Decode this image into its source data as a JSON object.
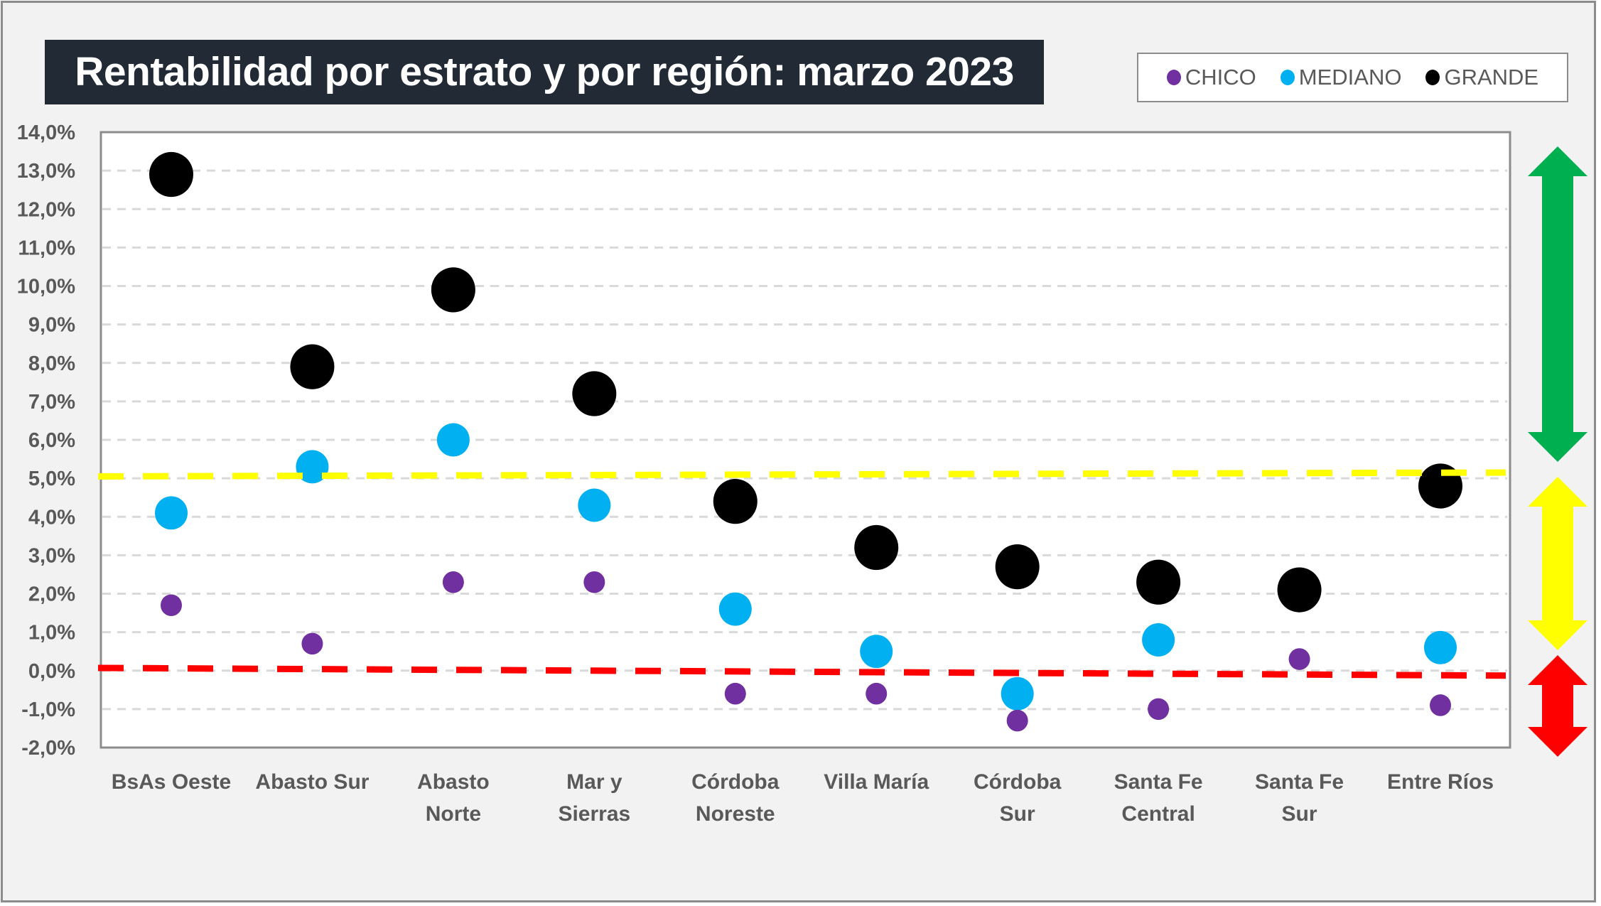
{
  "chart_data": {
    "type": "scatter",
    "title": "Rentabilidad por estrato y por región: marzo 2023",
    "xlabel": "",
    "ylabel": "",
    "ylim": [
      -2.0,
      14.0
    ],
    "ytick_step": 1.0,
    "ytick_format": "{v},0%",
    "grid": true,
    "legend_position": "top-right",
    "categories": [
      [
        "BsAs Oeste"
      ],
      [
        "Abasto Sur"
      ],
      [
        "Abasto",
        "Norte"
      ],
      [
        "Mar y",
        "Sierras"
      ],
      [
        "Córdoba",
        "Noreste"
      ],
      [
        "Villa María"
      ],
      [
        "Córdoba",
        "Sur"
      ],
      [
        "Santa Fe",
        "Central"
      ],
      [
        "Santa Fe",
        "Sur"
      ],
      [
        "Entre Ríos"
      ]
    ],
    "series": [
      {
        "name": "MEDIANO",
        "color": "#00b0f0",
        "size": "medium",
        "values": [
          4.1,
          5.3,
          6.0,
          4.3,
          1.6,
          0.5,
          -0.6,
          0.8,
          2.1,
          0.6
        ]
      },
      {
        "name": "GRANDE",
        "color": "#000000",
        "size": "large",
        "values": [
          12.9,
          7.9,
          9.9,
          7.2,
          4.4,
          3.2,
          2.7,
          2.3,
          2.1,
          4.8
        ]
      },
      {
        "name": "CHICO",
        "color": "#7030a0",
        "size": "small",
        "values": [
          1.7,
          0.7,
          2.3,
          2.3,
          -0.6,
          -0.6,
          -1.3,
          -1.0,
          0.3,
          -0.9
        ]
      }
    ],
    "reference_lines": [
      {
        "name": "umbral-alto",
        "color": "#ffff00",
        "style": "dashed",
        "y_start": 5.05,
        "y_end": 5.15
      },
      {
        "name": "umbral-cero",
        "color": "#ff0000",
        "style": "dashed",
        "y_start": 0.07,
        "y_end": -0.13
      }
    ],
    "band_arrows": [
      {
        "name": "green-band",
        "color": "#00b050",
        "from": 5.0,
        "to": 14.0
      },
      {
        "name": "yellow-band",
        "color": "#ffff00",
        "from": 0.0,
        "to": 5.0
      },
      {
        "name": "red-band",
        "color": "#ff0000",
        "from": -2.0,
        "to": 0.0
      }
    ]
  },
  "legend": {
    "items": [
      {
        "label": "CHICO",
        "color": "#7030a0"
      },
      {
        "label": "MEDIANO",
        "color": "#00b0f0"
      },
      {
        "label": "GRANDE",
        "color": "#000000"
      }
    ]
  }
}
